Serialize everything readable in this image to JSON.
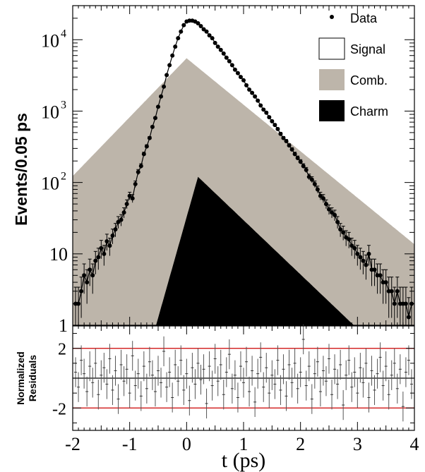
{
  "chart_data": [
    {
      "type": "scatter",
      "panel": "main",
      "ylabel": "Events/0.05 ps",
      "xlim": [
        -2,
        4
      ],
      "ylim": [
        1,
        30000
      ],
      "yscale": "log",
      "y_tick_labels": [
        {
          "v": 1,
          "base": "1",
          "exp": ""
        },
        {
          "v": 10,
          "base": "10",
          "exp": ""
        },
        {
          "v": 100,
          "base": "10",
          "exp": "2"
        },
        {
          "v": 1000,
          "base": "10",
          "exp": "3"
        },
        {
          "v": 10000,
          "base": "10",
          "exp": "4"
        }
      ],
      "legend_placement": "top-right",
      "legend": [
        {
          "label": "Data",
          "style": "marker"
        },
        {
          "label": "Signal",
          "style": "open-box"
        },
        {
          "label": "Comb.",
          "style": "filled",
          "color": "#bdb5aa"
        },
        {
          "label": "Charm",
          "style": "filled",
          "color": "#000000"
        }
      ],
      "colors": {
        "data": "#000000",
        "comb": "#bdb5aa",
        "charm": "#000000",
        "fit_line": "#000000"
      },
      "series": [
        {
          "name": "Data",
          "note": "binned points, 0.05 ps bins, with error bars",
          "x": [
            -1.95,
            -1.9,
            -1.85,
            -1.8,
            -1.75,
            -1.7,
            -1.65,
            -1.6,
            -1.55,
            -1.5,
            -1.45,
            -1.4,
            -1.35,
            -1.3,
            -1.25,
            -1.2,
            -1.15,
            -1.1,
            -1.05,
            -1.0,
            -0.95,
            -0.9,
            -0.85,
            -0.8,
            -0.75,
            -0.7,
            -0.65,
            -0.6,
            -0.55,
            -0.5,
            -0.45,
            -0.4,
            -0.35,
            -0.3,
            -0.25,
            -0.2,
            -0.15,
            -0.1,
            -0.05,
            0.0,
            0.05,
            0.1,
            0.15,
            0.2,
            0.25,
            0.3,
            0.35,
            0.4,
            0.45,
            0.5,
            0.55,
            0.6,
            0.65,
            0.7,
            0.75,
            0.8,
            0.85,
            0.9,
            0.95,
            1.0,
            1.05,
            1.1,
            1.15,
            1.2,
            1.25,
            1.3,
            1.35,
            1.4,
            1.45,
            1.5,
            1.55,
            1.6,
            1.65,
            1.7,
            1.75,
            1.8,
            1.85,
            1.9,
            1.95,
            2.0,
            2.05,
            2.1,
            2.15,
            2.2,
            2.25,
            2.3,
            2.35,
            2.4,
            2.45,
            2.5,
            2.55,
            2.6,
            2.65,
            2.7,
            2.75,
            2.8,
            2.85,
            2.9,
            2.95,
            3.0,
            3.05,
            3.1,
            3.15,
            3.2,
            3.25,
            3.3,
            3.35,
            3.4,
            3.45,
            3.5,
            3.55,
            3.6,
            3.65,
            3.7,
            3.75,
            3.8,
            3.85,
            3.9,
            3.95
          ],
          "y": [
            2,
            2,
            3,
            5,
            4,
            6,
            5,
            8,
            9,
            12,
            10,
            15,
            13,
            18,
            22,
            28,
            30,
            38,
            50,
            65,
            60,
            95,
            140,
            170,
            250,
            320,
            420,
            600,
            800,
            1150,
            1600,
            2200,
            3200,
            4400,
            6000,
            8000,
            10500,
            13000,
            16000,
            18000,
            18500,
            18500,
            18000,
            17000,
            15500,
            14000,
            13000,
            11500,
            10500,
            9000,
            8000,
            7200,
            6400,
            5600,
            5000,
            4400,
            3800,
            3400,
            3000,
            2700,
            2300,
            2000,
            1800,
            1600,
            1400,
            1200,
            1050,
            950,
            820,
            720,
            640,
            560,
            480,
            420,
            380,
            330,
            290,
            250,
            220,
            195,
            170,
            150,
            120,
            110,
            95,
            80,
            65,
            60,
            50,
            42,
            38,
            35,
            28,
            22,
            20,
            17,
            16,
            13,
            12,
            10,
            9,
            8,
            7,
            10,
            6,
            6,
            5,
            5,
            4,
            4,
            3,
            3,
            2,
            3,
            2,
            2,
            2,
            1.3,
            2
          ]
        },
        {
          "name": "Signal",
          "note": "total fit line drawn through data"
        },
        {
          "name": "Comb.",
          "note": "filled gray area",
          "peak_x": 0.0,
          "peak_y": 5500
        },
        {
          "name": "Charm",
          "note": "filled black area",
          "peak_x": 0.2,
          "peak_y": 120
        }
      ]
    },
    {
      "type": "scatter",
      "panel": "residuals",
      "xlabel": "t (ps)",
      "ylabel": "Normalized Residuals",
      "xlim": [
        -2,
        4
      ],
      "ylim": [
        -3.5,
        3.5
      ],
      "x_ticks": [
        "-2",
        "-1",
        "0",
        "1",
        "2",
        "3",
        "4"
      ],
      "y_ticks": [
        "2",
        "-2"
      ],
      "reference_lines": [
        {
          "y": 2,
          "color": "#cc0000"
        },
        {
          "y": -2,
          "color": "#cc0000"
        },
        {
          "y": 0,
          "color": "#000000"
        }
      ],
      "x": [
        -1.95,
        -1.9,
        -1.85,
        -1.8,
        -1.75,
        -1.7,
        -1.65,
        -1.6,
        -1.55,
        -1.5,
        -1.45,
        -1.4,
        -1.35,
        -1.3,
        -1.25,
        -1.2,
        -1.15,
        -1.1,
        -1.05,
        -1.0,
        -0.95,
        -0.9,
        -0.85,
        -0.8,
        -0.75,
        -0.7,
        -0.65,
        -0.6,
        -0.55,
        -0.5,
        -0.45,
        -0.4,
        -0.35,
        -0.3,
        -0.25,
        -0.2,
        -0.15,
        -0.1,
        -0.05,
        0.0,
        0.05,
        0.1,
        0.15,
        0.2,
        0.25,
        0.3,
        0.35,
        0.4,
        0.45,
        0.5,
        0.55,
        0.6,
        0.65,
        0.7,
        0.75,
        0.8,
        0.85,
        0.9,
        0.95,
        1.0,
        1.05,
        1.1,
        1.15,
        1.2,
        1.25,
        1.3,
        1.35,
        1.4,
        1.45,
        1.5,
        1.55,
        1.6,
        1.65,
        1.7,
        1.75,
        1.8,
        1.85,
        1.9,
        1.95,
        2.0,
        2.05,
        2.1,
        2.15,
        2.2,
        2.25,
        2.3,
        2.35,
        2.4,
        2.45,
        2.5,
        2.55,
        2.6,
        2.65,
        2.7,
        2.75,
        2.8,
        2.85,
        2.9,
        2.95,
        3.0,
        3.05,
        3.1,
        3.15,
        3.2,
        3.25,
        3.3,
        3.35,
        3.4,
        3.45,
        3.5,
        3.55,
        3.6,
        3.65,
        3.7,
        3.75,
        3.8,
        3.85,
        3.9,
        3.95
      ],
      "y": [
        0.4,
        -0.6,
        1.2,
        0.3,
        -0.9,
        0.8,
        -0.3,
        1.0,
        -1.1,
        0.2,
        0.7,
        -0.4,
        1.3,
        -0.8,
        0.5,
        -1.4,
        0.9,
        -0.2,
        0.6,
        -1.0,
        1.5,
        -0.5,
        0.3,
        -1.2,
        0.8,
        -0.7,
        1.1,
        0.2,
        -0.9,
        0.5,
        -0.3,
        1.8,
        -0.6,
        0.4,
        -1.3,
        0.9,
        -0.2,
        1.2,
        -0.8,
        0.3,
        -1.5,
        0.7,
        -0.4,
        1.0,
        -0.1,
        0.6,
        -1.7,
        0.8,
        -0.5,
        1.3,
        -0.2,
        0.9,
        -1.1,
        0.4,
        1.6,
        -0.7,
        0.2,
        -1.3,
        0.8,
        -0.3,
        1.1,
        -0.9,
        0.5,
        -1.6,
        0.3,
        1.4,
        -0.6,
        0.7,
        -1.0,
        0.2,
        -0.4,
        1.2,
        -0.8,
        0.6,
        -1.2,
        0.9,
        -0.3,
        1.0,
        -0.7,
        0.4,
        2.6,
        -0.5,
        0.8,
        -1.4,
        0.3,
        1.1,
        -0.9,
        0.5,
        -0.2,
        1.3,
        -1.1,
        0.6,
        -0.4,
        0.9,
        -1.8,
        0.2,
        1.2,
        -0.6,
        0.4,
        -1.0,
        0.7,
        -0.3,
        1.0,
        -1.3,
        0.5,
        -0.8,
        0.3,
        1.4,
        -0.5,
        0.8,
        -1.1,
        0.2,
        1.0,
        -0.7,
        0.6,
        -1.9,
        0.4,
        1.2,
        -0.4
      ]
    }
  ]
}
